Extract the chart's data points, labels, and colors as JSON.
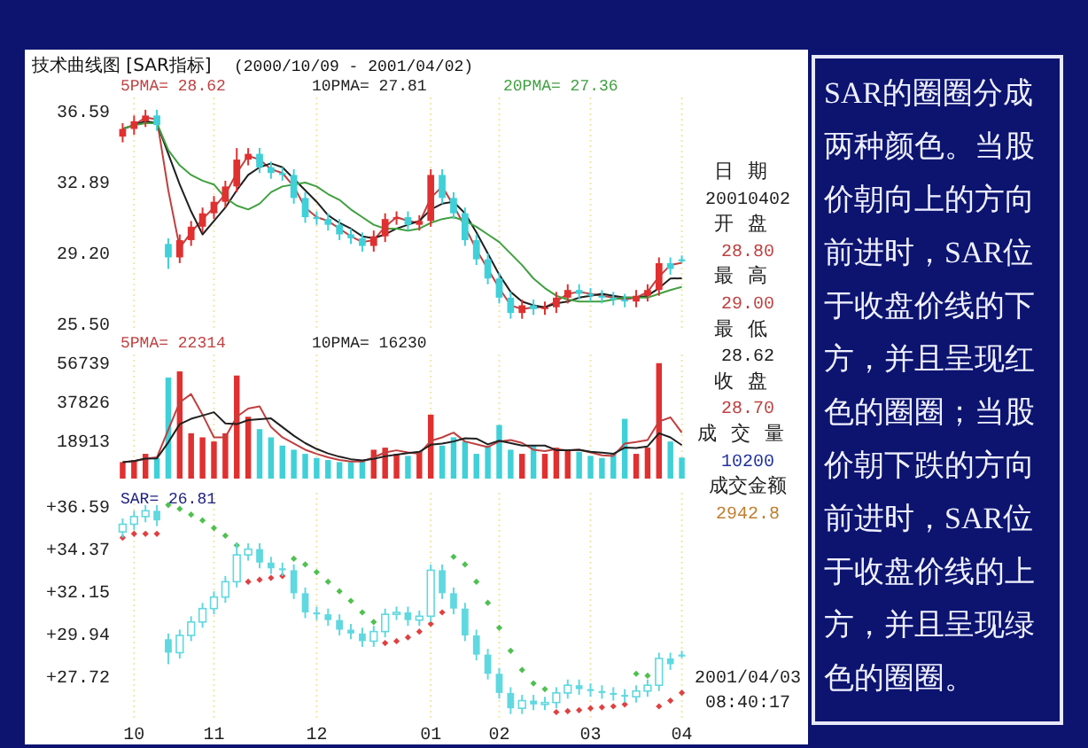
{
  "chart_data": [
    {
      "type": "candlestick",
      "title": "技术曲线图 [SAR指标]",
      "subtitle": "(2000/10/09 - 2001/04/02)",
      "categories": [
        null,
        "10",
        null,
        null,
        null,
        null,
        null,
        null,
        "11",
        null,
        null,
        null,
        null,
        null,
        null,
        null,
        null,
        "12",
        null,
        null,
        null,
        null,
        null,
        null,
        null,
        null,
        null,
        "01",
        null,
        null,
        null,
        null,
        null,
        "02",
        null,
        null,
        null,
        null,
        null,
        null,
        null,
        "03",
        null,
        null,
        null,
        null,
        null,
        null,
        null,
        "04"
      ],
      "ohlc": [
        [
          35.2,
          35.9,
          34.9,
          35.6
        ],
        [
          35.6,
          36.3,
          35.3,
          36.0
        ],
        [
          36.0,
          36.6,
          35.7,
          36.3
        ],
        [
          36.3,
          36.6,
          35.5,
          35.8
        ],
        [
          29.6,
          29.9,
          28.3,
          28.9
        ],
        [
          28.9,
          30.1,
          28.6,
          29.8
        ],
        [
          29.8,
          30.8,
          29.5,
          30.5
        ],
        [
          30.5,
          31.5,
          30.2,
          31.2
        ],
        [
          31.2,
          32.1,
          30.9,
          31.8
        ],
        [
          31.8,
          32.9,
          31.5,
          32.6
        ],
        [
          32.6,
          34.6,
          32.3,
          34.0
        ],
        [
          34.0,
          34.6,
          33.7,
          34.3
        ],
        [
          34.3,
          34.6,
          33.3,
          33.6
        ],
        [
          33.6,
          33.9,
          33.0,
          33.3
        ],
        [
          33.3,
          33.6,
          32.9,
          33.2
        ],
        [
          33.2,
          33.5,
          31.7,
          32.0
        ],
        [
          32.0,
          32.3,
          30.7,
          31.0
        ],
        [
          31.0,
          31.3,
          30.6,
          30.9
        ],
        [
          30.9,
          31.2,
          30.3,
          30.6
        ],
        [
          30.6,
          30.9,
          29.8,
          30.1
        ],
        [
          30.1,
          30.4,
          29.6,
          29.9
        ],
        [
          29.9,
          30.2,
          29.2,
          29.5
        ],
        [
          29.5,
          30.3,
          29.2,
          30.0
        ],
        [
          30.0,
          31.2,
          29.7,
          30.9
        ],
        [
          30.9,
          31.3,
          30.6,
          31.0
        ],
        [
          31.0,
          31.3,
          30.3,
          30.6
        ],
        [
          30.6,
          31.1,
          30.3,
          30.8
        ],
        [
          30.8,
          33.5,
          30.5,
          33.2
        ],
        [
          33.2,
          33.5,
          31.7,
          32.0
        ],
        [
          32.0,
          32.3,
          30.9,
          31.2
        ],
        [
          31.2,
          31.5,
          29.5,
          29.8
        ],
        [
          29.8,
          30.1,
          28.5,
          28.8
        ],
        [
          28.8,
          29.1,
          27.5,
          27.8
        ],
        [
          27.8,
          28.1,
          26.5,
          26.8
        ],
        [
          26.8,
          27.1,
          25.7,
          26.0
        ],
        [
          26.0,
          26.7,
          25.7,
          26.4
        ],
        [
          26.4,
          26.7,
          25.9,
          26.2
        ],
        [
          26.2,
          26.6,
          25.9,
          26.3
        ],
        [
          26.3,
          27.1,
          26.0,
          26.8
        ],
        [
          26.8,
          27.5,
          26.5,
          27.2
        ],
        [
          27.2,
          27.5,
          26.7,
          27.0
        ],
        [
          27.0,
          27.3,
          26.6,
          26.9
        ],
        [
          26.9,
          27.2,
          26.5,
          26.8
        ],
        [
          26.8,
          27.1,
          26.4,
          26.7
        ],
        [
          26.7,
          27.0,
          26.3,
          26.6
        ],
        [
          26.6,
          27.2,
          26.3,
          26.9
        ],
        [
          26.9,
          27.5,
          26.6,
          27.2
        ],
        [
          27.2,
          28.9,
          26.9,
          28.6
        ],
        [
          28.6,
          28.9,
          28.0,
          28.3
        ],
        [
          28.8,
          29.0,
          28.62,
          28.7
        ]
      ],
      "colors": [
        "#e03030",
        "#e03030",
        "#e03030",
        "#40d0d8",
        "#40d0d8",
        "#e03030",
        "#e03030",
        "#e03030",
        "#e03030",
        "#e03030",
        "#e03030",
        "#e03030",
        "#40d0d8",
        "#40d0d8",
        "#40d0d8",
        "#40d0d8",
        "#40d0d8",
        "#40d0d8",
        "#40d0d8",
        "#40d0d8",
        "#40d0d8",
        "#40d0d8",
        "#e03030",
        "#e03030",
        "#e03030",
        "#40d0d8",
        "#e03030",
        "#e03030",
        "#40d0d8",
        "#40d0d8",
        "#40d0d8",
        "#40d0d8",
        "#40d0d8",
        "#40d0d8",
        "#40d0d8",
        "#e03030",
        "#40d0d8",
        "#e03030",
        "#e03030",
        "#e03030",
        "#40d0d8",
        "#40d0d8",
        "#40d0d8",
        "#40d0d8",
        "#40d0d8",
        "#e03030",
        "#e03030",
        "#e03030",
        "#40d0d8",
        "#40d0d8"
      ],
      "series": [
        {
          "type": "line",
          "name": "5PMA= 28.62",
          "color": "#c04040",
          "values": [
            35.6,
            35.8,
            36.2,
            36.1,
            32.4,
            29.4,
            30.2,
            30.9,
            31.5,
            32.2,
            33.3,
            34.2,
            34.0,
            33.5,
            33.3,
            32.6,
            31.5,
            31.0,
            30.8,
            30.4,
            30.0,
            29.7,
            29.8,
            30.5,
            31.0,
            30.8,
            30.7,
            32.0,
            32.6,
            31.6,
            30.5,
            29.3,
            28.3,
            27.3,
            26.4,
            26.2,
            26.3,
            26.3,
            26.6,
            27.0,
            27.1,
            27.0,
            26.9,
            26.8,
            26.7,
            26.8,
            27.1,
            27.9,
            28.5,
            28.62
          ]
        },
        {
          "type": "line",
          "name": "10PMA= 27.81",
          "color": "#202020",
          "values": [
            35.6,
            35.8,
            36.0,
            35.9,
            34.3,
            32.7,
            31.3,
            30.1,
            30.8,
            31.5,
            32.4,
            33.2,
            33.6,
            33.8,
            33.6,
            33.0,
            32.4,
            31.8,
            31.1,
            30.7,
            30.4,
            30.0,
            29.9,
            30.1,
            30.4,
            30.6,
            30.8,
            31.4,
            31.7,
            31.8,
            31.2,
            30.2,
            29.1,
            28.0,
            27.1,
            26.6,
            26.4,
            26.3,
            26.5,
            26.6,
            26.8,
            26.9,
            27.0,
            26.9,
            26.8,
            26.8,
            26.9,
            27.3,
            27.8,
            27.81
          ]
        },
        {
          "type": "line",
          "name": "20PMA= 27.36",
          "color": "#40a040",
          "values": [
            35.6,
            35.8,
            35.9,
            35.9,
            34.5,
            33.7,
            33.2,
            32.9,
            32.7,
            32.0,
            31.6,
            31.4,
            31.7,
            32.3,
            32.6,
            32.7,
            32.8,
            32.6,
            32.2,
            31.9,
            31.4,
            31.0,
            30.6,
            30.4,
            30.4,
            30.3,
            30.4,
            30.7,
            30.9,
            31.0,
            30.8,
            30.5,
            30.1,
            29.7,
            29.1,
            28.5,
            27.8,
            27.3,
            26.9,
            26.7,
            26.6,
            26.6,
            26.6,
            26.7,
            26.8,
            26.8,
            26.8,
            27.0,
            27.2,
            27.36
          ]
        }
      ],
      "ylim": [
        25.13,
        37.24
      ],
      "yticks": [
        {
          "value": 25.5,
          "label": "25.50"
        },
        {
          "value": 29.2,
          "label": "29.20"
        },
        32.89,
        36.59
      ],
      "tick_labels": "y",
      "grid": "x"
    },
    {
      "type": "bar",
      "categories": [
        null,
        "10",
        null,
        null,
        null,
        null,
        null,
        null,
        "11",
        null,
        null,
        null,
        null,
        null,
        null,
        null,
        null,
        "12",
        null,
        null,
        null,
        null,
        null,
        null,
        null,
        null,
        null,
        "01",
        null,
        null,
        null,
        null,
        null,
        "02",
        null,
        null,
        null,
        null,
        null,
        null,
        null,
        "03",
        null,
        null,
        null,
        null,
        null,
        null,
        null,
        "04"
      ],
      "series": [
        {
          "type": "bar",
          "values": [
            8000,
            9000,
            12000,
            10000,
            49000,
            52000,
            22000,
            20000,
            18000,
            22000,
            50000,
            30000,
            24000,
            20000,
            16000,
            14000,
            12000,
            10000,
            9000,
            8000,
            8000,
            9000,
            14000,
            15000,
            12000,
            11000,
            13000,
            31000,
            16000,
            20000,
            18000,
            12000,
            16000,
            26000,
            14000,
            12000,
            16000,
            12000,
            15000,
            14000,
            13000,
            11000,
            10000,
            12000,
            29000,
            12000,
            15000,
            56000,
            18000,
            10200
          ],
          "colors": [
            "#e03030",
            "#e03030",
            "#e03030",
            "#40d0d8",
            "#40d0d8",
            "#e03030",
            "#e03030",
            "#e03030",
            "#e03030",
            "#e03030",
            "#e03030",
            "#e03030",
            "#40d0d8",
            "#40d0d8",
            "#40d0d8",
            "#40d0d8",
            "#40d0d8",
            "#40d0d8",
            "#40d0d8",
            "#40d0d8",
            "#40d0d8",
            "#40d0d8",
            "#e03030",
            "#e03030",
            "#e03030",
            "#40d0d8",
            "#e03030",
            "#e03030",
            "#40d0d8",
            "#40d0d8",
            "#40d0d8",
            "#40d0d8",
            "#40d0d8",
            "#40d0d8",
            "#40d0d8",
            "#e03030",
            "#40d0d8",
            "#e03030",
            "#e03030",
            "#e03030",
            "#40d0d8",
            "#40d0d8",
            "#40d0d8",
            "#40d0d8",
            "#40d0d8",
            "#e03030",
            "#e03030",
            "#e03030",
            "#40d0d8",
            "#40d0d8"
          ]
        },
        {
          "type": "line",
          "name": "5PMA= 22314",
          "color": "#c04040",
          "values": [
            8000,
            8500,
            9700,
            10300,
            23700,
            37000,
            41000,
            31000,
            20000,
            20000,
            30000,
            34000,
            35000,
            25000,
            20000,
            17000,
            14000,
            12000,
            10300,
            9000,
            8300,
            8300,
            10300,
            12700,
            13700,
            12700,
            12000,
            18300,
            20000,
            22300,
            18000,
            16700,
            15300,
            18000,
            18700,
            17300,
            14000,
            13300,
            14300,
            13700,
            14000,
            12700,
            11300,
            11000,
            17000,
            17700,
            18700,
            27700,
            29700,
            22314
          ]
        },
        {
          "type": "line",
          "name": "10PMA= 16230",
          "color": "#202020",
          "values": [
            8000,
            8500,
            9700,
            9800,
            17600,
            26400,
            29000,
            30600,
            32200,
            26800,
            26400,
            28400,
            28800,
            29200,
            25000,
            20800,
            17200,
            14400,
            12200,
            10600,
            9400,
            8800,
            9600,
            10800,
            11600,
            12400,
            13000,
            16400,
            17000,
            18000,
            19600,
            19400,
            16600,
            18400,
            17200,
            16000,
            16000,
            16000,
            13800,
            13800,
            14000,
            13000,
            12600,
            12000,
            15000,
            14800,
            15600,
            22000,
            20000,
            16230
          ]
        }
      ],
      "ylim": [
        0,
        60200
      ],
      "yticks": [
        18913,
        37826,
        56739
      ],
      "tick_labels": "y",
      "grid": "x"
    },
    {
      "type": "candlestick",
      "annotations": [
        "SAR= 26.81"
      ],
      "categories": [
        null,
        "10",
        null,
        null,
        null,
        null,
        null,
        null,
        "11",
        null,
        null,
        null,
        null,
        null,
        null,
        null,
        null,
        "12",
        null,
        null,
        null,
        null,
        null,
        null,
        null,
        null,
        null,
        "01",
        null,
        null,
        null,
        null,
        null,
        "02",
        null,
        null,
        null,
        null,
        null,
        null,
        null,
        "03",
        null,
        null,
        null,
        null,
        null,
        null,
        null,
        "04"
      ],
      "ohlc": [
        [
          35.2,
          35.9,
          34.9,
          35.6
        ],
        [
          35.6,
          36.3,
          35.3,
          36.0
        ],
        [
          36.0,
          36.6,
          35.7,
          36.3
        ],
        [
          36.3,
          36.6,
          35.5,
          35.8
        ],
        [
          29.6,
          29.9,
          28.3,
          28.9
        ],
        [
          28.9,
          30.1,
          28.6,
          29.8
        ],
        [
          29.8,
          30.8,
          29.5,
          30.5
        ],
        [
          30.5,
          31.5,
          30.2,
          31.2
        ],
        [
          31.2,
          32.1,
          30.9,
          31.8
        ],
        [
          31.8,
          32.9,
          31.5,
          32.6
        ],
        [
          32.6,
          34.6,
          32.3,
          34.0
        ],
        [
          34.0,
          34.6,
          33.7,
          34.3
        ],
        [
          34.3,
          34.6,
          33.3,
          33.6
        ],
        [
          33.6,
          33.9,
          33.0,
          33.3
        ],
        [
          33.3,
          33.6,
          32.9,
          33.2
        ],
        [
          33.2,
          33.5,
          31.7,
          32.0
        ],
        [
          32.0,
          32.3,
          30.7,
          31.0
        ],
        [
          31.0,
          31.3,
          30.6,
          30.9
        ],
        [
          30.9,
          31.2,
          30.3,
          30.6
        ],
        [
          30.6,
          30.9,
          29.8,
          30.1
        ],
        [
          30.1,
          30.4,
          29.6,
          29.9
        ],
        [
          29.9,
          30.2,
          29.2,
          29.5
        ],
        [
          29.5,
          30.3,
          29.2,
          30.0
        ],
        [
          30.0,
          31.2,
          29.7,
          30.9
        ],
        [
          30.9,
          31.3,
          30.6,
          31.0
        ],
        [
          31.0,
          31.3,
          30.3,
          30.6
        ],
        [
          30.6,
          31.1,
          30.3,
          30.8
        ],
        [
          30.8,
          33.5,
          30.5,
          33.2
        ],
        [
          33.2,
          33.5,
          31.7,
          32.0
        ],
        [
          32.0,
          32.3,
          30.9,
          31.2
        ],
        [
          31.2,
          31.5,
          29.5,
          29.8
        ],
        [
          29.8,
          30.1,
          28.5,
          28.8
        ],
        [
          28.8,
          29.1,
          27.5,
          27.8
        ],
        [
          27.8,
          28.1,
          26.5,
          26.8
        ],
        [
          26.8,
          27.1,
          25.7,
          26.0
        ],
        [
          26.0,
          26.7,
          25.7,
          26.4
        ],
        [
          26.4,
          26.7,
          25.9,
          26.2
        ],
        [
          26.2,
          26.6,
          25.9,
          26.3
        ],
        [
          26.3,
          27.1,
          26.0,
          26.8
        ],
        [
          26.8,
          27.5,
          26.5,
          27.2
        ],
        [
          27.2,
          27.5,
          26.7,
          27.0
        ],
        [
          27.0,
          27.3,
          26.6,
          26.9
        ],
        [
          26.9,
          27.2,
          26.5,
          26.8
        ],
        [
          26.8,
          27.1,
          26.4,
          26.7
        ],
        [
          26.7,
          27.0,
          26.3,
          26.6
        ],
        [
          26.6,
          27.2,
          26.3,
          26.9
        ],
        [
          26.9,
          27.5,
          26.6,
          27.2
        ],
        [
          27.2,
          28.9,
          26.9,
          28.6
        ],
        [
          28.6,
          28.9,
          28.0,
          28.3
        ],
        [
          28.8,
          29.0,
          28.62,
          28.7
        ]
      ],
      "color": "#60d8e0",
      "marker": "diamond",
      "series": [
        {
          "type": "scatter",
          "color": "#e04040",
          "values": [
            34.9,
            35.1,
            35.1,
            35.1,
            null,
            null,
            null,
            null,
            null,
            null,
            null,
            32.6,
            32.7,
            32.8,
            32.9,
            null,
            null,
            null,
            null,
            null,
            null,
            null,
            null,
            29.4,
            29.5,
            29.7,
            30.0,
            30.4,
            31.0,
            null,
            null,
            null,
            null,
            null,
            null,
            null,
            null,
            null,
            25.8,
            25.85,
            25.9,
            26.0,
            26.05,
            26.1,
            26.2,
            null,
            null,
            26.1,
            26.4,
            26.81
          ]
        },
        {
          "type": "scatter",
          "color": "#50c050",
          "values": [
            null,
            null,
            null,
            null,
            36.6,
            36.4,
            36.1,
            35.8,
            35.4,
            35.0,
            34.5,
            null,
            null,
            null,
            null,
            33.8,
            33.5,
            33.1,
            32.6,
            32.1,
            31.6,
            31.0,
            30.5,
            null,
            null,
            null,
            null,
            null,
            null,
            33.9,
            33.5,
            32.6,
            31.5,
            30.2,
            29.0,
            28.0,
            27.3,
            27.0,
            null,
            null,
            null,
            null,
            null,
            null,
            null,
            27.8,
            27.7,
            null,
            null,
            null
          ]
        }
      ],
      "ylim": [
        25.5,
        37.24
      ],
      "yticks": [
        {
          "value": 27.72,
          "label": "+27.72"
        },
        {
          "value": 29.94,
          "label": "+29.94"
        },
        {
          "value": 32.15,
          "label": "+32.15"
        },
        {
          "value": 34.37,
          "label": "+34.37"
        },
        {
          "value": 36.59,
          "label": "+36.59"
        }
      ],
      "grid": "x"
    },
    {
      "type": "other",
      "annotations": [
        "日期",
        "20010402",
        "开盘",
        "28.80",
        "最高",
        "29.00",
        "最低",
        "28.62",
        "收盘",
        "28.70",
        "成交量",
        "10200",
        "成交金额",
        "2942.8",
        "2001/04/03",
        "08:40:17"
      ]
    },
    {
      "type": "other",
      "annotations": [
        "SAR的圈圈分成两种颜色。当股价朝向上的方向前进时，SAR位于收盘价线的下方，并且呈现红色的圈圈；当股价朝下跌的方向前进时，SAR位于收盘价线的上方，并且呈现绿色的圈圈。"
      ]
    }
  ]
}
